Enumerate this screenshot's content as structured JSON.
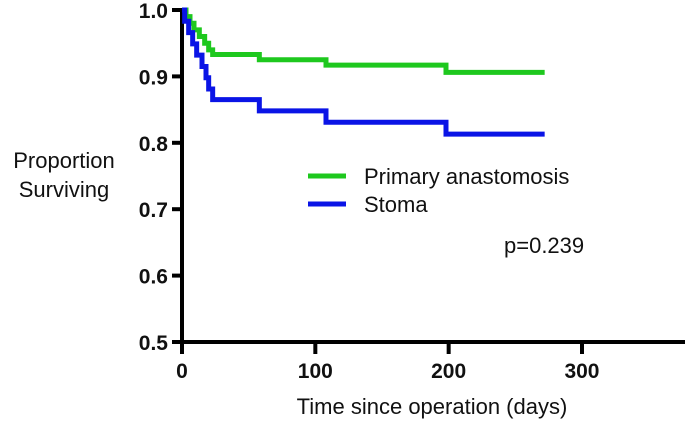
{
  "chart_data": {
    "type": "line",
    "subtype": "kaplan-meier-step",
    "title": "",
    "xlabel": "Time since operation (days)",
    "ylabel_lines": [
      "Proportion",
      "Surviving"
    ],
    "xlim": [
      0,
      380
    ],
    "ylim": [
      0.5,
      1.0
    ],
    "xticks": [
      0,
      100,
      200,
      300
    ],
    "xtick_labels": [
      "0",
      "100",
      "200",
      "300"
    ],
    "yticks": [
      0.5,
      0.6,
      0.7,
      0.8,
      0.9,
      1.0
    ],
    "ytick_labels": [
      "0.5",
      "0.6",
      "0.7",
      "0.8",
      "0.9",
      "1.0"
    ],
    "grid": false,
    "legend_position": "center-right",
    "annotation": "p=0.239",
    "series": [
      {
        "name": "Primary anastomosis",
        "color": "#1ec81e",
        "steps": [
          {
            "t": 0,
            "s": 1.0
          },
          {
            "t": 3,
            "s": 0.99
          },
          {
            "t": 6,
            "s": 0.98
          },
          {
            "t": 9,
            "s": 0.97
          },
          {
            "t": 13,
            "s": 0.96
          },
          {
            "t": 17,
            "s": 0.95
          },
          {
            "t": 20,
            "s": 0.94
          },
          {
            "t": 23,
            "s": 0.933
          },
          {
            "t": 58,
            "s": 0.925
          },
          {
            "t": 108,
            "s": 0.917
          },
          {
            "t": 198,
            "s": 0.906
          }
        ],
        "end_t": 272
      },
      {
        "name": "Stoma",
        "color": "#0a14e6",
        "steps": [
          {
            "t": 0,
            "s": 1.0
          },
          {
            "t": 2,
            "s": 0.983
          },
          {
            "t": 5,
            "s": 0.966
          },
          {
            "t": 8,
            "s": 0.949
          },
          {
            "t": 11,
            "s": 0.932
          },
          {
            "t": 15,
            "s": 0.915
          },
          {
            "t": 18,
            "s": 0.898
          },
          {
            "t": 20,
            "s": 0.881
          },
          {
            "t": 23,
            "s": 0.865
          },
          {
            "t": 58,
            "s": 0.848
          },
          {
            "t": 108,
            "s": 0.831
          },
          {
            "t": 198,
            "s": 0.813
          }
        ],
        "end_t": 272
      }
    ]
  }
}
